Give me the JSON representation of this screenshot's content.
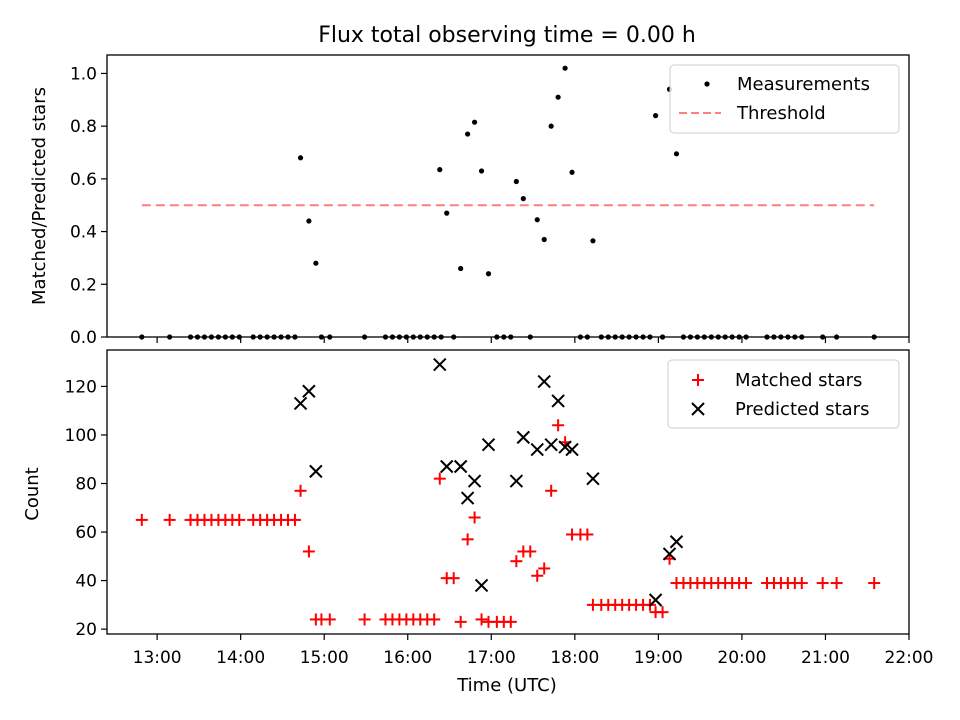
{
  "chart_data": [
    {
      "type": "scatter",
      "title": "Flux total observing time = 0.00 h",
      "xlabel": "",
      "ylabel": "Matched/Predicted stars",
      "xlim": [
        "12:24",
        "22:00"
      ],
      "ylim": [
        0,
        1.07
      ],
      "yticks": [
        "0.0",
        "0.2",
        "0.4",
        "0.6",
        "0.8",
        "1.0"
      ],
      "legend_position": "top-right",
      "series": [
        {
          "name": "Measurements",
          "style": "dot",
          "color": "#000000",
          "points": [
            [
              "12:49",
              0
            ],
            [
              "13:09",
              0
            ],
            [
              "13:24",
              0
            ],
            [
              "13:29",
              0
            ],
            [
              "13:34",
              0
            ],
            [
              "13:39",
              0
            ],
            [
              "13:44",
              0
            ],
            [
              "13:49",
              0
            ],
            [
              "13:54",
              0
            ],
            [
              "13:59",
              0
            ],
            [
              "14:09",
              0
            ],
            [
              "14:14",
              0
            ],
            [
              "14:19",
              0
            ],
            [
              "14:24",
              0
            ],
            [
              "14:29",
              0
            ],
            [
              "14:34",
              0
            ],
            [
              "14:39",
              0
            ],
            [
              "14:43",
              0.68
            ],
            [
              "14:49",
              0.44
            ],
            [
              "14:54",
              0.28
            ],
            [
              "14:58",
              0
            ],
            [
              "15:04",
              0
            ],
            [
              "15:29",
              0
            ],
            [
              "15:44",
              0
            ],
            [
              "15:49",
              0
            ],
            [
              "15:54",
              0
            ],
            [
              "15:59",
              0
            ],
            [
              "16:04",
              0
            ],
            [
              "16:09",
              0
            ],
            [
              "16:14",
              0
            ],
            [
              "16:19",
              0
            ],
            [
              "16:24",
              0
            ],
            [
              "16:23",
              0.635
            ],
            [
              "16:28",
              0.47
            ],
            [
              "16:33",
              0
            ],
            [
              "16:38",
              0.26
            ],
            [
              "16:43",
              0.77
            ],
            [
              "16:48",
              0.815
            ],
            [
              "16:53",
              0.63
            ],
            [
              "16:58",
              0.24
            ],
            [
              "17:04",
              0
            ],
            [
              "17:09",
              0
            ],
            [
              "17:14",
              0
            ],
            [
              "17:18",
              0.59
            ],
            [
              "17:23",
              0.525
            ],
            [
              "17:28",
              0
            ],
            [
              "17:33",
              0.445
            ],
            [
              "17:38",
              0.37
            ],
            [
              "17:43",
              0.8
            ],
            [
              "17:48",
              0.91
            ],
            [
              "17:53",
              1.02
            ],
            [
              "17:58",
              0.625
            ],
            [
              "18:04",
              0
            ],
            [
              "18:09",
              0
            ],
            [
              "18:13",
              0.365
            ],
            [
              "18:19",
              0
            ],
            [
              "18:24",
              0
            ],
            [
              "18:29",
              0
            ],
            [
              "18:34",
              0
            ],
            [
              "18:39",
              0
            ],
            [
              "18:44",
              0
            ],
            [
              "18:49",
              0
            ],
            [
              "18:54",
              0
            ],
            [
              "18:58",
              0.84
            ],
            [
              "19:03",
              0
            ],
            [
              "19:08",
              0.94
            ],
            [
              "19:13",
              0.695
            ],
            [
              "19:18",
              0
            ],
            [
              "19:23",
              0
            ],
            [
              "19:28",
              0
            ],
            [
              "19:33",
              0
            ],
            [
              "19:38",
              0
            ],
            [
              "19:43",
              0
            ],
            [
              "19:48",
              0
            ],
            [
              "19:53",
              0
            ],
            [
              "19:58",
              0
            ],
            [
              "20:03",
              0
            ],
            [
              "20:18",
              0
            ],
            [
              "20:23",
              0
            ],
            [
              "20:28",
              0
            ],
            [
              "20:33",
              0
            ],
            [
              "20:38",
              0
            ],
            [
              "20:43",
              0
            ],
            [
              "20:58",
              0
            ],
            [
              "21:08",
              0
            ],
            [
              "21:35",
              0
            ]
          ]
        },
        {
          "name": "Threshold",
          "style": "dashed-line",
          "color": "#ff7f7f",
          "points": [
            [
              "12:49",
              0.5
            ],
            [
              "21:35",
              0.5
            ]
          ]
        }
      ]
    },
    {
      "type": "scatter",
      "title": "",
      "xlabel": "Time (UTC)",
      "ylabel": "Count",
      "xlim": [
        "12:24",
        "22:00"
      ],
      "ylim": [
        18,
        135
      ],
      "xticks": [
        "13:00",
        "14:00",
        "15:00",
        "16:00",
        "17:00",
        "18:00",
        "19:00",
        "20:00",
        "21:00",
        "22:00"
      ],
      "yticks": [
        "20",
        "40",
        "60",
        "80",
        "100",
        "120"
      ],
      "legend_position": "top-right",
      "series": [
        {
          "name": "Matched stars",
          "style": "plus",
          "color": "#ff0000",
          "points": [
            [
              "12:49",
              65
            ],
            [
              "13:09",
              65
            ],
            [
              "13:24",
              65
            ],
            [
              "13:29",
              65
            ],
            [
              "13:34",
              65
            ],
            [
              "13:39",
              65
            ],
            [
              "13:44",
              65
            ],
            [
              "13:49",
              65
            ],
            [
              "13:54",
              65
            ],
            [
              "13:59",
              65
            ],
            [
              "14:09",
              65
            ],
            [
              "14:14",
              65
            ],
            [
              "14:19",
              65
            ],
            [
              "14:24",
              65
            ],
            [
              "14:29",
              65
            ],
            [
              "14:34",
              65
            ],
            [
              "14:39",
              65
            ],
            [
              "14:43",
              77
            ],
            [
              "14:49",
              52
            ],
            [
              "14:54",
              24
            ],
            [
              "14:58",
              24
            ],
            [
              "15:04",
              24
            ],
            [
              "15:29",
              24
            ],
            [
              "15:44",
              24
            ],
            [
              "15:49",
              24
            ],
            [
              "15:54",
              24
            ],
            [
              "15:59",
              24
            ],
            [
              "16:04",
              24
            ],
            [
              "16:09",
              24
            ],
            [
              "16:14",
              24
            ],
            [
              "16:19",
              24
            ],
            [
              "16:23",
              82
            ],
            [
              "16:28",
              41
            ],
            [
              "16:33",
              41
            ],
            [
              "16:38",
              23
            ],
            [
              "16:43",
              57
            ],
            [
              "16:48",
              66
            ],
            [
              "16:53",
              24
            ],
            [
              "16:58",
              23
            ],
            [
              "17:04",
              23
            ],
            [
              "17:09",
              23
            ],
            [
              "17:14",
              23
            ],
            [
              "17:18",
              48
            ],
            [
              "17:23",
              52
            ],
            [
              "17:28",
              52
            ],
            [
              "17:33",
              42
            ],
            [
              "17:38",
              45
            ],
            [
              "17:43",
              77
            ],
            [
              "17:48",
              104
            ],
            [
              "17:53",
              97
            ],
            [
              "17:58",
              59
            ],
            [
              "18:04",
              59
            ],
            [
              "18:09",
              59
            ],
            [
              "18:13",
              30
            ],
            [
              "18:19",
              30
            ],
            [
              "18:24",
              30
            ],
            [
              "18:29",
              30
            ],
            [
              "18:34",
              30
            ],
            [
              "18:39",
              30
            ],
            [
              "18:44",
              30
            ],
            [
              "18:49",
              30
            ],
            [
              "18:54",
              30
            ],
            [
              "18:58",
              27
            ],
            [
              "19:03",
              27
            ],
            [
              "19:08",
              49
            ],
            [
              "19:13",
              39
            ],
            [
              "19:18",
              39
            ],
            [
              "19:23",
              39
            ],
            [
              "19:28",
              39
            ],
            [
              "19:33",
              39
            ],
            [
              "19:38",
              39
            ],
            [
              "19:43",
              39
            ],
            [
              "19:48",
              39
            ],
            [
              "19:53",
              39
            ],
            [
              "19:58",
              39
            ],
            [
              "20:03",
              39
            ],
            [
              "20:18",
              39
            ],
            [
              "20:23",
              39
            ],
            [
              "20:28",
              39
            ],
            [
              "20:33",
              39
            ],
            [
              "20:38",
              39
            ],
            [
              "20:43",
              39
            ],
            [
              "20:58",
              39
            ],
            [
              "21:08",
              39
            ],
            [
              "21:35",
              39
            ]
          ]
        },
        {
          "name": "Predicted stars",
          "style": "x",
          "color": "#000000",
          "points": [
            [
              "14:43",
              113
            ],
            [
              "14:49",
              118
            ],
            [
              "14:54",
              85
            ],
            [
              "16:23",
              129
            ],
            [
              "16:28",
              87
            ],
            [
              "16:38",
              87
            ],
            [
              "16:43",
              74
            ],
            [
              "16:48",
              81
            ],
            [
              "16:53",
              38
            ],
            [
              "16:58",
              96
            ],
            [
              "17:18",
              81
            ],
            [
              "17:23",
              99
            ],
            [
              "17:33",
              94
            ],
            [
              "17:38",
              122
            ],
            [
              "17:43",
              96
            ],
            [
              "17:48",
              114
            ],
            [
              "17:53",
              95
            ],
            [
              "17:58",
              94
            ],
            [
              "18:13",
              82
            ],
            [
              "18:58",
              32
            ],
            [
              "19:08",
              51
            ],
            [
              "19:13",
              56
            ]
          ]
        }
      ]
    }
  ]
}
